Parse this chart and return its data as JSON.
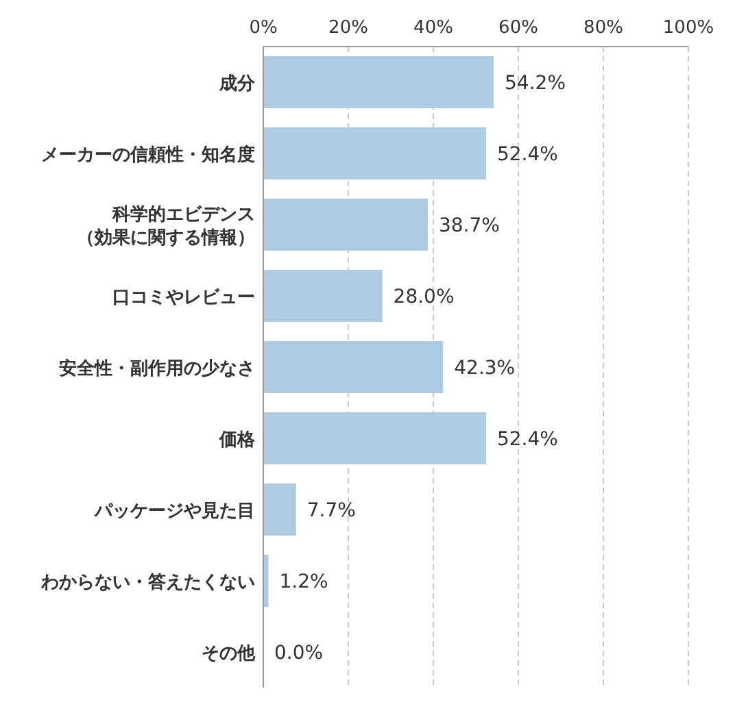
{
  "chart_data": {
    "type": "bar",
    "orientation": "horizontal",
    "categories": [
      "成分",
      "メーカーの信頼性・知名度",
      "科学的エビデンス（効果に関する情報）",
      "口コミやレビュー",
      "安全性・副作用の少なさ",
      "価格",
      "パッケージや見た目",
      "わからない・答えたくない",
      "その他"
    ],
    "values": [
      54.2,
      52.4,
      38.7,
      28.0,
      42.3,
      52.4,
      7.7,
      1.2,
      0.0
    ],
    "value_labels": [
      "54.2%",
      "52.4%",
      "38.7%",
      "28.0%",
      "42.3%",
      "52.4%",
      "7.7%",
      "1.2%",
      "0.0%"
    ],
    "color": "#aecbe3",
    "xlim": [
      0,
      100
    ],
    "xticks": [
      {
        "value": 0,
        "label": "0%"
      },
      {
        "value": 20,
        "label": "20%"
      },
      {
        "value": 40,
        "label": "40%"
      },
      {
        "value": 60,
        "label": "60%"
      },
      {
        "value": 80,
        "label": "80%"
      },
      {
        "value": 100,
        "label": "100%"
      }
    ],
    "grid": "x"
  }
}
